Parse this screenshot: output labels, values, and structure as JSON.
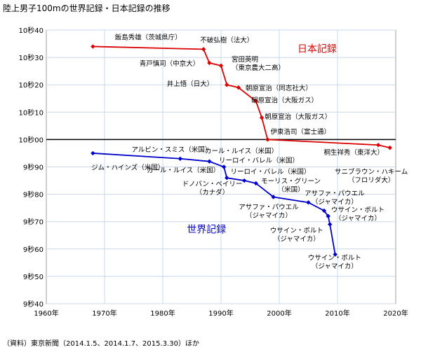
{
  "title": "陸上男子100mの世界記録・日本記録の推移",
  "source": "（資料）東京新聞（2014.1.5、2014.1.7、2015.3.30）ほか",
  "colors": {
    "world": "#0000cc",
    "japan": "#dd0000",
    "grid": "#c8d8ec",
    "axis": "#000000"
  },
  "chart_data": {
    "type": "line",
    "xlabel": "",
    "ylabel": "",
    "xlim": [
      1960,
      2020
    ],
    "ylim": [
      9.4,
      10.4
    ],
    "x_ticks": [
      1960,
      1970,
      1980,
      1990,
      2000,
      2010,
      2020
    ],
    "x_tick_labels": [
      "1960年",
      "1970年",
      "1980年",
      "1990年",
      "2000年",
      "2010年",
      "2020年"
    ],
    "y_ticks": [
      10.4,
      10.3,
      10.2,
      10.1,
      10.0,
      9.9,
      9.8,
      9.7,
      9.6,
      9.5,
      9.4
    ],
    "y_tick_labels": [
      "10秒40",
      "10秒30",
      "10秒20",
      "10秒10",
      "10秒00",
      "9秒90",
      "9秒80",
      "9秒70",
      "9秒60",
      "9秒50",
      "9秒40"
    ],
    "grid": true,
    "series": [
      {
        "name": "日本記録",
        "color": "#dd0000",
        "x": [
          1968,
          1987,
          1988,
          1990,
          1991,
          1993,
          1996,
          1997,
          1998,
          2017,
          2019
        ],
        "y": [
          10.34,
          10.33,
          10.28,
          10.27,
          10.2,
          10.19,
          10.14,
          10.08,
          10.0,
          9.98,
          9.97
        ]
      },
      {
        "name": "世界記録",
        "color": "#0000cc",
        "x": [
          1968,
          1983,
          1988,
          1990.5,
          1991,
          1994,
          1996,
          1999,
          2005,
          2007.7,
          2008.4,
          2008.7,
          2009.6
        ],
        "y": [
          9.95,
          9.93,
          9.92,
          9.9,
          9.86,
          9.85,
          9.84,
          9.79,
          9.77,
          9.74,
          9.72,
          9.69,
          9.58
        ]
      }
    ],
    "series_labels": [
      {
        "name": "日本記録",
        "x": 2006.5,
        "y": 10.32,
        "anchor": "middle",
        "size": 14
      },
      {
        "name": "世界記録",
        "x": 1987.5,
        "y": 9.66,
        "anchor": "middle",
        "size": 14
      }
    ],
    "annotations": [
      {
        "lines": [
          "飯島秀雄（茨城県庁）"
        ],
        "x": 1977.5,
        "y": 10.365,
        "anchor": "middle",
        "series": "japan"
      },
      {
        "lines": [
          "不破弘樹（法大）"
        ],
        "x": 1991,
        "y": 10.355,
        "anchor": "middle",
        "series": "japan"
      },
      {
        "lines": [
          "宮田英明",
          "（東京農大二高）"
        ],
        "x": 1991.8,
        "y": 10.285,
        "anchor": "start",
        "series": "japan"
      },
      {
        "lines": [
          "青戸慎司（中京大）"
        ],
        "x": 1986.3,
        "y": 10.27,
        "anchor": "end",
        "series": "japan"
      },
      {
        "lines": [
          "井上悟（日大）"
        ],
        "x": 1988.7,
        "y": 10.195,
        "anchor": "end",
        "series": "japan"
      },
      {
        "lines": [
          "朝原宣治（同志社大）"
        ],
        "x": 1994.2,
        "y": 10.18,
        "anchor": "start",
        "series": "japan"
      },
      {
        "lines": [
          "朝原宣治（大阪ガス）"
        ],
        "x": 1995.2,
        "y": 10.135,
        "anchor": "start",
        "series": "japan"
      },
      {
        "lines": [
          "朝原宣治（大阪ガス）"
        ],
        "x": 1997.5,
        "y": 10.075,
        "anchor": "start",
        "series": "japan"
      },
      {
        "lines": [
          "伊東浩司（富士通）"
        ],
        "x": 1998.5,
        "y": 10.02,
        "anchor": "start",
        "series": "japan"
      },
      {
        "lines": [
          "桐生祥秀（東洋大）"
        ],
        "x": 2012.8,
        "y": 9.945,
        "anchor": "middle",
        "series": "japan"
      },
      {
        "lines": [
          "サニブラウン・ハキーム",
          "（フロリダ大）"
        ],
        "x": 2015.8,
        "y": 9.875,
        "anchor": "middle",
        "series": "japan"
      },
      {
        "lines": [
          "ジム・ハインズ（米国）"
        ],
        "x": 1974,
        "y": 9.89,
        "anchor": "middle",
        "series": "world"
      },
      {
        "lines": [
          "アルビン・スミス（米国）"
        ],
        "x": 1981.5,
        "y": 9.955,
        "anchor": "middle",
        "series": "world"
      },
      {
        "lines": [
          "カール・ルイス（米国）"
        ],
        "x": 1993.5,
        "y": 9.95,
        "anchor": "middle",
        "series": "world"
      },
      {
        "lines": [
          "リーロイ・バレル（米国）"
        ],
        "x": 1996.5,
        "y": 9.915,
        "anchor": "middle",
        "series": "world"
      },
      {
        "lines": [
          "カール・ルイス（米国）"
        ],
        "x": 1983.5,
        "y": 9.88,
        "anchor": "middle",
        "series": "world"
      },
      {
        "lines": [
          "リーロイ・バレル（米国）"
        ],
        "x": 1998.5,
        "y": 9.875,
        "anchor": "middle",
        "series": "world"
      },
      {
        "lines": [
          "ドノバン・ベイリー",
          "（カナダ）"
        ],
        "x": 1988.5,
        "y": 9.83,
        "anchor": "middle",
        "series": "world"
      },
      {
        "lines": [
          "モーリス・グリーン",
          "（米国）"
        ],
        "x": 2002,
        "y": 9.84,
        "anchor": "middle",
        "series": "world"
      },
      {
        "lines": [
          "アサファ・パウエル",
          "（ジャマイカ）"
        ],
        "x": 2009.5,
        "y": 9.795,
        "anchor": "middle",
        "series": "world"
      },
      {
        "lines": [
          "アサファ・パウエル",
          "（ジャマイカ）"
        ],
        "x": 1998.2,
        "y": 9.745,
        "anchor": "middle",
        "series": "world"
      },
      {
        "lines": [
          "ウサイン・ボルト",
          "（ジャマイカ）"
        ],
        "x": 2013.5,
        "y": 9.735,
        "anchor": "middle",
        "series": "world"
      },
      {
        "lines": [
          "ウサイン・ボルト",
          "（ジャマイカ）"
        ],
        "x": 2003,
        "y": 9.66,
        "anchor": "middle",
        "series": "world"
      },
      {
        "lines": [
          "ウサイン・ボルト",
          "（ジャマイカ）"
        ],
        "x": 2009.5,
        "y": 9.56,
        "anchor": "middle",
        "series": "world"
      }
    ]
  }
}
